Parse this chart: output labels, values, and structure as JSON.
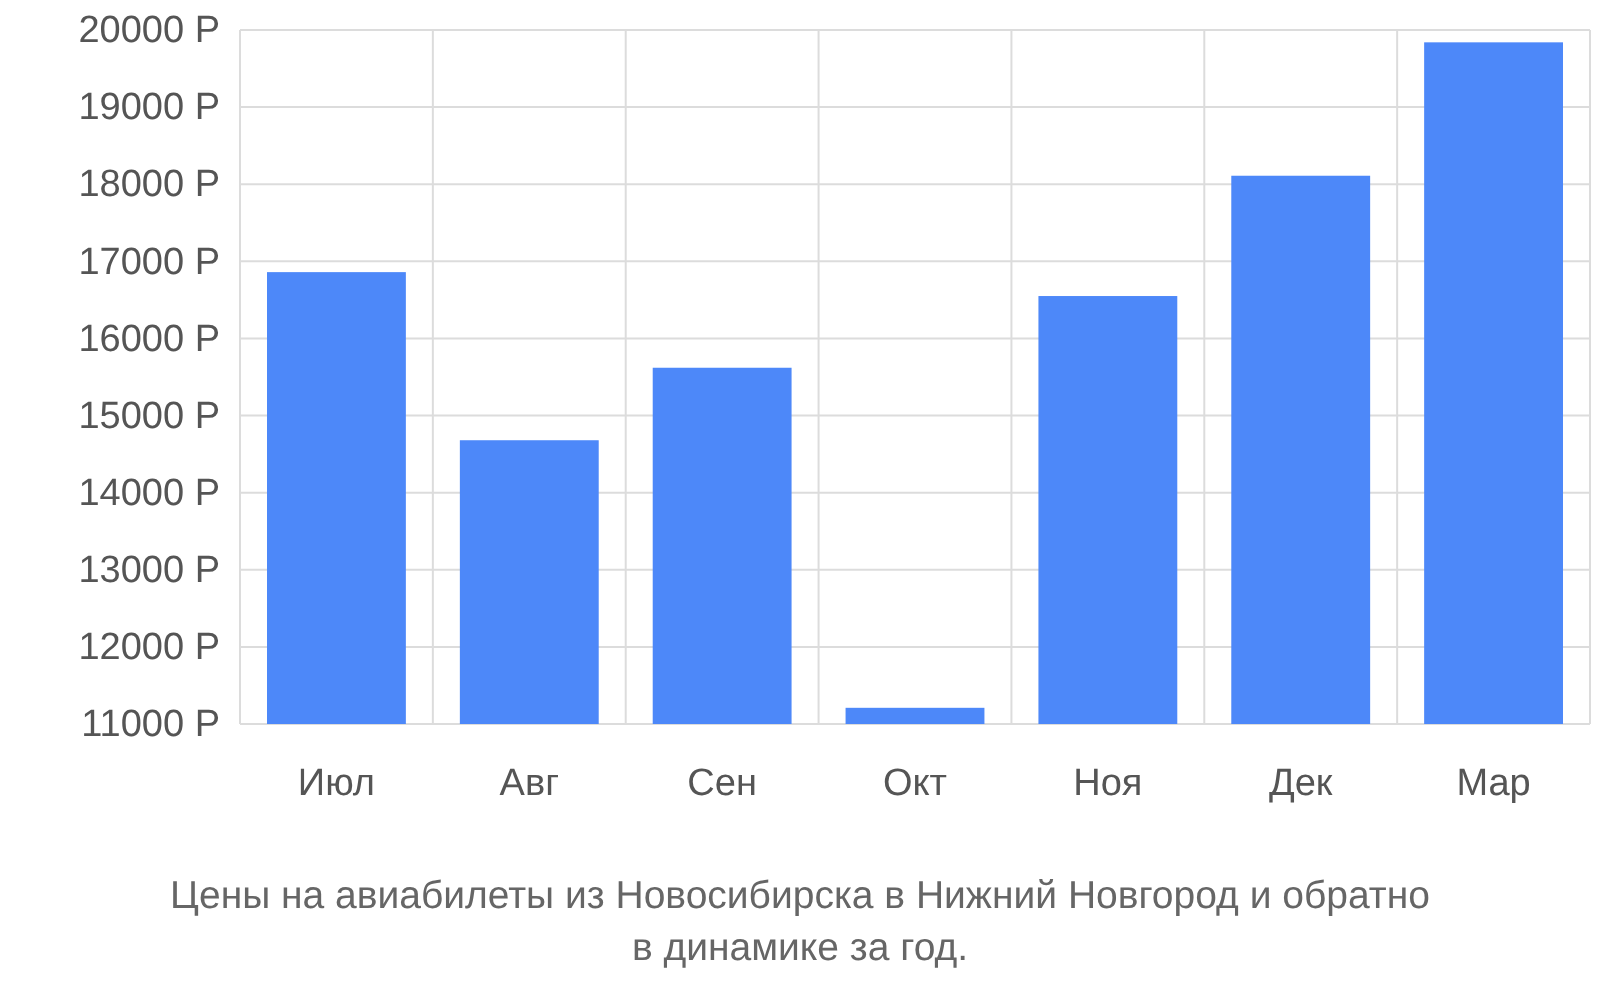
{
  "chart_data": {
    "type": "bar",
    "categories": [
      "Июл",
      "Авг",
      "Сен",
      "Окт",
      "Ноя",
      "Дек",
      "Мар"
    ],
    "values": [
      16860,
      14680,
      15620,
      11210,
      16550,
      18110,
      19840
    ],
    "color": "#4d88f9",
    "ylim": [
      11000,
      20000
    ],
    "yticks": [
      {
        "value": 11000,
        "label": "11000 Р"
      },
      {
        "value": 12000,
        "label": "12000 Р"
      },
      {
        "value": 13000,
        "label": "13000 Р"
      },
      {
        "value": 14000,
        "label": "14000 Р"
      },
      {
        "value": 15000,
        "label": "15000 Р"
      },
      {
        "value": 16000,
        "label": "16000 Р"
      },
      {
        "value": 17000,
        "label": "17000 Р"
      },
      {
        "value": 18000,
        "label": "18000 Р"
      },
      {
        "value": 19000,
        "label": "19000 Р"
      },
      {
        "value": 20000,
        "label": "20000 Р"
      }
    ],
    "grid": true,
    "annotations": [
      "Цены на авиабилеты из Новосибирска в Нижний Новгород и обратно",
      "в динамике за год."
    ]
  }
}
